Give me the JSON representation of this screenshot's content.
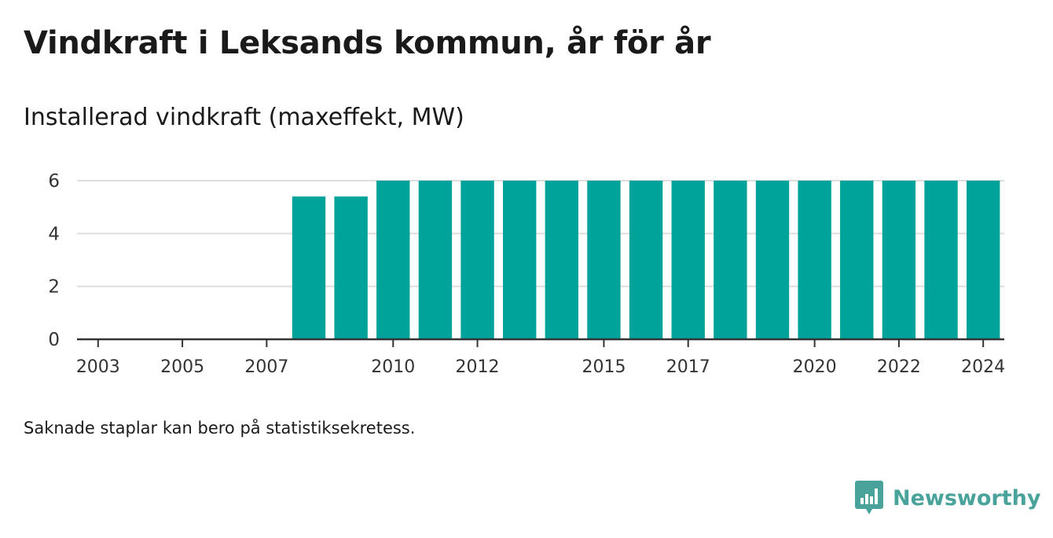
{
  "header": {
    "title": "Vindkraft i Leksands kommun, år för år",
    "subtitle": "Installerad vindkraft (maxeffekt, MW)"
  },
  "footnote": "Saknade staplar kan bero på statistiksekretess.",
  "brand": {
    "name": "Newsworthy",
    "color": "#4aa39a",
    "icon": "chart-bubble-icon"
  },
  "colors": {
    "bar": "#00a39a",
    "grid": "#dddddd",
    "axis": "#333333"
  },
  "chart_data": {
    "type": "bar",
    "categories": [
      "2003",
      "2004",
      "2005",
      "2006",
      "2007",
      "2008",
      "2009",
      "2010",
      "2011",
      "2012",
      "2013",
      "2014",
      "2015",
      "2016",
      "2017",
      "2018",
      "2019",
      "2020",
      "2021",
      "2022",
      "2023",
      "2024"
    ],
    "values": [
      0,
      0,
      0,
      0,
      0,
      5.4,
      5.4,
      6,
      6,
      6,
      6,
      6,
      6,
      6,
      6,
      6,
      6,
      6,
      6,
      6,
      6,
      6
    ],
    "x_tick_labels": [
      "2003",
      "2005",
      "2007",
      "2010",
      "2012",
      "2015",
      "2017",
      "2020",
      "2022",
      "2024"
    ],
    "y_ticks": [
      0,
      2,
      4,
      6
    ],
    "ylim": [
      0,
      6.2
    ],
    "grid": true,
    "legend": "none"
  }
}
